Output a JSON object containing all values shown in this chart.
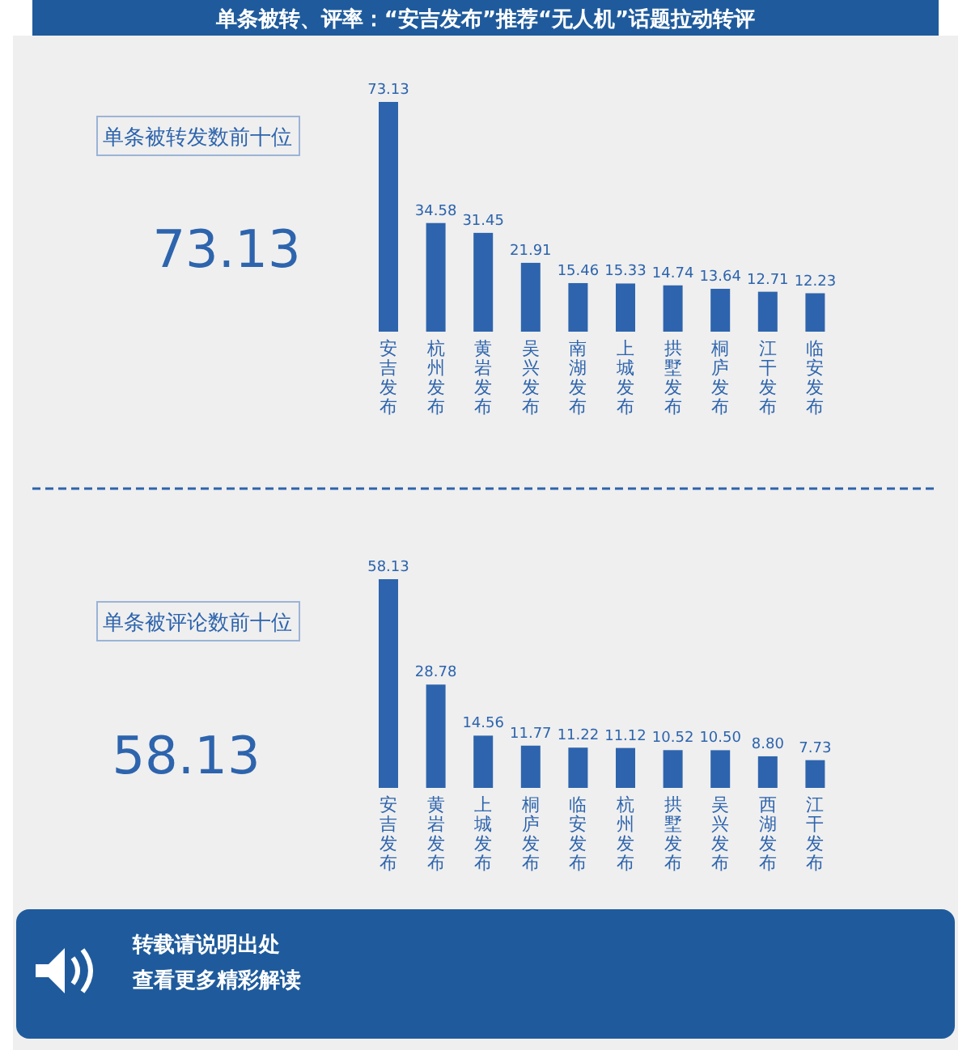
{
  "chart_data": [
    {
      "type": "bar",
      "title": "单条被转、评率：“安吉发布”推荐“无人机”话题拉动转评",
      "subtitle": "单条被转发数前十位",
      "categories": [
        "安吉发布",
        "杭州发布",
        "黄岩发布",
        "吴兴发布",
        "南湖发布",
        "上城发布",
        "拱墅发布",
        "桐庐发布",
        "江干发布",
        "临安发布"
      ],
      "values": [
        73.13,
        34.58,
        31.45,
        21.91,
        15.46,
        15.33,
        14.74,
        13.64,
        12.71,
        12.23
      ],
      "color": "#2d64ad",
      "data_labels": true,
      "annotations": [
        "73.13"
      ]
    },
    {
      "type": "bar",
      "subtitle": "单条被评论数前十位",
      "categories": [
        "安吉发布",
        "黄岩发布",
        "上城发布",
        "桐庐发布",
        "临安发布",
        "杭州发布",
        "拱墅发布",
        "吴兴发布",
        "西湖发布",
        "江干发布"
      ],
      "values": [
        58.13,
        28.78,
        14.56,
        11.77,
        11.22,
        11.12,
        10.52,
        10.5,
        8.8,
        7.73
      ],
      "value_labels": [
        "58.13",
        "28.78",
        "14.56",
        "11.77",
        "11.22",
        "11.12",
        "10.52",
        "10.50",
        "8.80",
        "7.73"
      ],
      "color": "#2d64ad",
      "annotations": [
        "58.13",
        "转载请说明出处",
        "查看更多精彩解读"
      ]
    }
  ]
}
